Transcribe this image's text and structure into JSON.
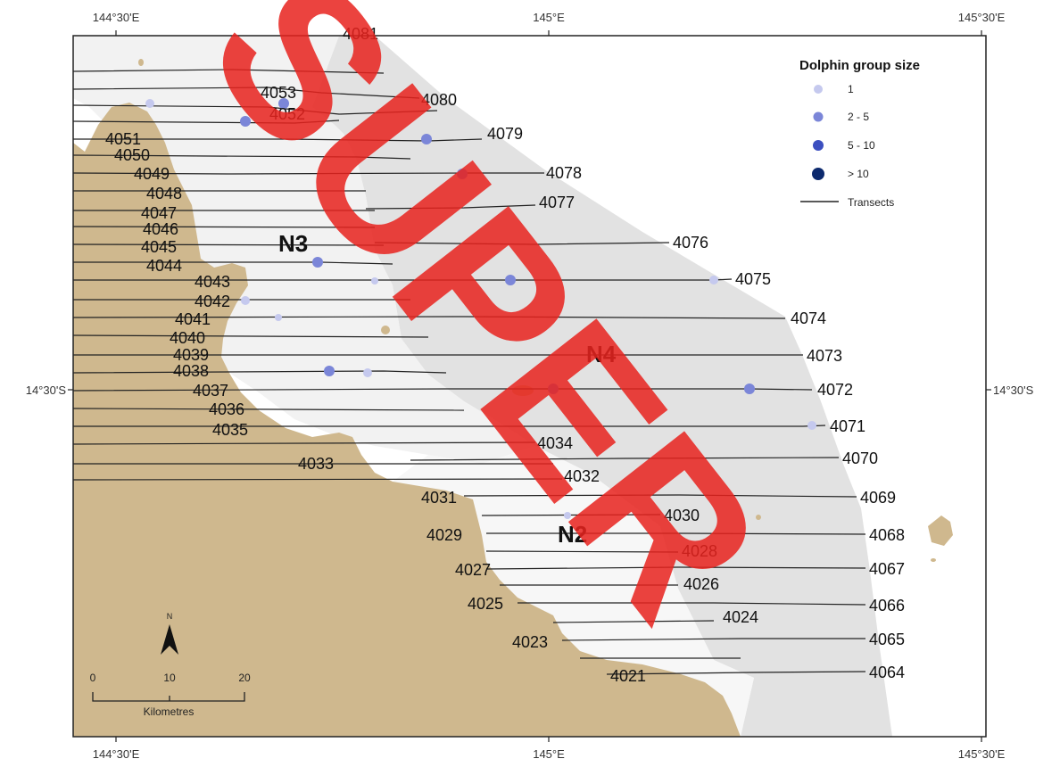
{
  "graticule": {
    "top": [
      "144°30'E",
      "145°E",
      "145°30'E"
    ],
    "bottom": [
      "144°30'E",
      "145°E",
      "145°30'E"
    ],
    "left": "14°30'S",
    "right": "14°30'S"
  },
  "zones": [
    "N3",
    "N4",
    "N2"
  ],
  "legend": {
    "title": "Dolphin group size",
    "items": [
      {
        "label": "1",
        "color": "#c5c9ee"
      },
      {
        "label": "2 - 5",
        "color": "#7b86d8"
      },
      {
        "label": "5 - 10",
        "color": "#3c4fc0"
      },
      {
        "label": "> 10",
        "color": "#0d2a6e"
      }
    ],
    "line_label": "Transects"
  },
  "scale": {
    "ticks": [
      "0",
      "10",
      "20"
    ],
    "unit": "Kilometres",
    "north": "N"
  },
  "transects": [
    "4081",
    "4080",
    "4079",
    "4078",
    "4077",
    "4076",
    "4075",
    "4074",
    "4073",
    "4072",
    "4071",
    "4070",
    "4069",
    "4068",
    "4067",
    "4066",
    "4065",
    "4064",
    "4053",
    "4052",
    "4051",
    "4050",
    "4049",
    "4048",
    "4047",
    "4046",
    "4045",
    "4044",
    "4043",
    "4042",
    "4041",
    "4040",
    "4039",
    "4038",
    "4037",
    "4036",
    "4035",
    "4034",
    "4033",
    "4032",
    "4031",
    "4030",
    "4029",
    "4028",
    "4027",
    "4026",
    "4025",
    "4024",
    "4023",
    "4021"
  ],
  "watermark": "SUPER"
}
